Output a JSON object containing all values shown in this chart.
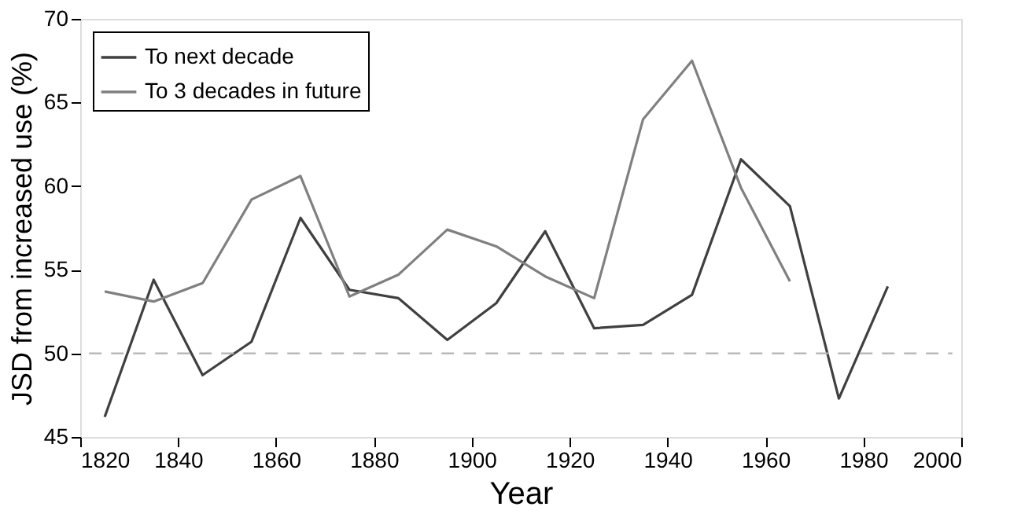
{
  "chart_data": {
    "type": "line",
    "xlabel": "Year",
    "ylabel": "JSD from increased use (%)",
    "xlim": [
      1820,
      2000
    ],
    "xticks": [
      1820,
      1840,
      1860,
      1880,
      1900,
      1920,
      1940,
      1960,
      1980,
      2000
    ],
    "ylim": [
      45,
      70
    ],
    "yticks": [
      45,
      50,
      55,
      60,
      65,
      70
    ],
    "grid": false,
    "legend": "top left",
    "line_style": "solid",
    "marker": "none",
    "ref_lines": [
      {
        "axis": "y",
        "value": 50,
        "color": "#b4b4b4",
        "line_style": "dashed"
      }
    ],
    "series": [
      {
        "name": "To next decade",
        "color": "#404040",
        "x": [
          1825,
          1835,
          1845,
          1855,
          1865,
          1875,
          1885,
          1895,
          1905,
          1915,
          1925,
          1935,
          1945,
          1955,
          1965,
          1975,
          1985
        ],
        "values": [
          46.2,
          54.4,
          48.7,
          50.7,
          58.1,
          53.8,
          53.3,
          50.8,
          53.0,
          57.3,
          51.5,
          51.7,
          53.5,
          61.6,
          58.8,
          47.3,
          54.0
        ]
      },
      {
        "name": "To 3 decades in future",
        "color": "#808080",
        "x": [
          1825,
          1835,
          1845,
          1855,
          1865,
          1875,
          1885,
          1895,
          1905,
          1915,
          1925,
          1935,
          1945,
          1955,
          1965
        ],
        "values": [
          53.7,
          53.1,
          54.2,
          59.2,
          60.6,
          53.4,
          54.7,
          57.4,
          56.4,
          54.6,
          53.3,
          64.0,
          67.5,
          59.9,
          54.3
        ]
      }
    ]
  }
}
